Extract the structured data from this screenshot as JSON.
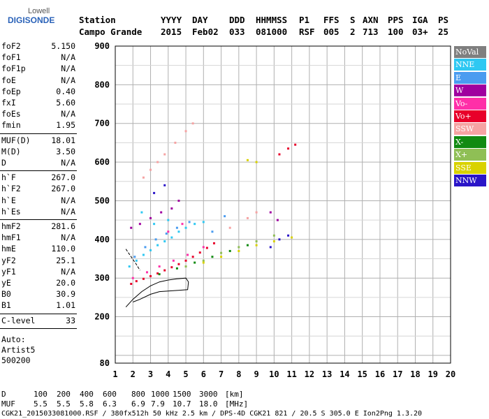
{
  "logo": {
    "line1": "Lowell",
    "line2": "DIGISONDE"
  },
  "header": {
    "station_label": "Station",
    "station_name": "Campo Grande",
    "field_labels": [
      "YYYY",
      "DAY",
      "DDD",
      "HHMMSS",
      "P1",
      "FFS",
      "S",
      "AXN",
      "PPS",
      "IGA",
      "PS"
    ],
    "field_values": [
      "2015",
      "Feb02",
      "033",
      "081000",
      "RSF",
      "005",
      "2",
      "713",
      "100",
      "03+",
      "25"
    ]
  },
  "params": {
    "group1": [
      {
        "k": "foF2",
        "v": "5.150"
      },
      {
        "k": "foF1",
        "v": "N/A"
      },
      {
        "k": "foF1p",
        "v": "N/A"
      },
      {
        "k": "foE",
        "v": "N/A"
      },
      {
        "k": "foEp",
        "v": "0.40"
      },
      {
        "k": "fxI",
        "v": "5.60"
      },
      {
        "k": "foEs",
        "v": "N/A"
      },
      {
        "k": "fmin",
        "v": "1.95"
      }
    ],
    "group2": [
      {
        "k": "MUF(D)",
        "v": "18.01"
      },
      {
        "k": "M(D)",
        "v": "3.50"
      },
      {
        "k": "D",
        "v": "N/A"
      }
    ],
    "group3": [
      {
        "k": "h`F",
        "v": "267.0"
      },
      {
        "k": "h`F2",
        "v": "267.0"
      },
      {
        "k": "h`E",
        "v": "N/A"
      },
      {
        "k": "h`Es",
        "v": "N/A"
      }
    ],
    "group4": [
      {
        "k": "hmF2",
        "v": "281.6"
      },
      {
        "k": "hmF1",
        "v": "N/A"
      },
      {
        "k": "hmE",
        "v": "110.0"
      },
      {
        "k": "yF2",
        "v": "25.1"
      },
      {
        "k": "yF1",
        "v": "N/A"
      },
      {
        "k": "yE",
        "v": "20.0"
      },
      {
        "k": "B0",
        "v": "30.9"
      },
      {
        "k": "B1",
        "v": "1.01"
      }
    ],
    "group5": [
      {
        "k": "C-level",
        "v": "33"
      }
    ],
    "auto": [
      "Auto:",
      "Artist5",
      "500200"
    ]
  },
  "legend": [
    {
      "label": "NoVal",
      "color": "#7f7f7f"
    },
    {
      "label": "NNE",
      "color": "#2ec8f2"
    },
    {
      "label": "E",
      "color": "#4a9cf0"
    },
    {
      "label": "W",
      "color": "#a0009f"
    },
    {
      "label": "Vo-",
      "color": "#ff2fa8"
    },
    {
      "label": "Vo+",
      "color": "#e8002a"
    },
    {
      "label": "SSW",
      "color": "#f6a3a3"
    },
    {
      "label": "X-",
      "color": "#118a11"
    },
    {
      "label": "X+",
      "color": "#8fbf55"
    },
    {
      "label": "SSE",
      "color": "#d9d200"
    },
    {
      "label": "NNW",
      "color": "#2a15c8"
    }
  ],
  "footer": {
    "d_label": "D",
    "d_values": [
      "100",
      "200",
      "400",
      "600",
      "800",
      "1000",
      "1500",
      "3000"
    ],
    "d_unit": "[km]",
    "muf_label": "MUF",
    "muf_values": [
      "5.5",
      "5.5",
      "5.8",
      "6.3",
      "6.9",
      "7.9",
      "10.7",
      "18.0"
    ],
    "muf_unit": "[MHz]",
    "file_line": "CGK21_2015033081000.RSF / 380fx512h 50 kHz 2.5 km / DPS-4D CGK21 821 / 20.5 S 305.0 E Ion2Png 1.3.20"
  },
  "chart_data": {
    "type": "scatter",
    "xlim": [
      1,
      20
    ],
    "ylim": [
      80,
      900
    ],
    "x_ticks": [
      1,
      2,
      3,
      4,
      5,
      6,
      7,
      8,
      9,
      10,
      11,
      12,
      13,
      14,
      15,
      16,
      17,
      18,
      19,
      20
    ],
    "y_ticks": [
      80,
      200,
      300,
      400,
      500,
      600,
      700,
      800,
      900
    ],
    "grid": true,
    "legend_position": "right",
    "clusters": [
      {
        "name": "Vo+",
        "points": [
          [
            1.9,
            285
          ],
          [
            2.2,
            292
          ],
          [
            2.6,
            298
          ],
          [
            3.0,
            305
          ],
          [
            3.4,
            312
          ],
          [
            3.8,
            320
          ],
          [
            4.2,
            328
          ],
          [
            4.6,
            336
          ],
          [
            5.0,
            345
          ],
          [
            5.4,
            355
          ],
          [
            5.8,
            366
          ],
          [
            6.2,
            378
          ],
          [
            6.6,
            390
          ],
          [
            10.3,
            620
          ],
          [
            10.8,
            635
          ],
          [
            11.2,
            645
          ]
        ]
      },
      {
        "name": "NNE",
        "points": [
          [
            1.8,
            330
          ],
          [
            2.2,
            345
          ],
          [
            2.6,
            360
          ],
          [
            3.0,
            372
          ],
          [
            3.4,
            385
          ],
          [
            3.8,
            395
          ],
          [
            4.2,
            405
          ],
          [
            4.6,
            420
          ],
          [
            5.0,
            430
          ],
          [
            5.5,
            440
          ],
          [
            6.0,
            445
          ],
          [
            2.5,
            470
          ],
          [
            3.2,
            440
          ],
          [
            4.0,
            450
          ]
        ]
      },
      {
        "name": "E",
        "points": [
          [
            2.1,
            355
          ],
          [
            2.7,
            380
          ],
          [
            3.3,
            400
          ],
          [
            3.9,
            415
          ],
          [
            4.5,
            430
          ],
          [
            5.2,
            445
          ],
          [
            6.5,
            420
          ],
          [
            7.2,
            460
          ]
        ]
      },
      {
        "name": "W",
        "points": [
          [
            1.9,
            430
          ],
          [
            2.4,
            440
          ],
          [
            3.0,
            455
          ],
          [
            3.6,
            470
          ],
          [
            4.2,
            480
          ],
          [
            4.6,
            500
          ],
          [
            9.8,
            470
          ],
          [
            10.2,
            450
          ]
        ]
      },
      {
        "name": "Vo-",
        "points": [
          [
            2.0,
            300
          ],
          [
            2.8,
            315
          ],
          [
            3.5,
            330
          ],
          [
            4.3,
            345
          ],
          [
            5.1,
            360
          ],
          [
            6.0,
            380
          ],
          [
            4.0,
            420
          ],
          [
            4.8,
            440
          ]
        ]
      },
      {
        "name": "SSW",
        "points": [
          [
            2.6,
            560
          ],
          [
            3.0,
            580
          ],
          [
            3.4,
            600
          ],
          [
            3.8,
            620
          ],
          [
            4.4,
            650
          ],
          [
            5.0,
            680
          ],
          [
            5.4,
            700
          ],
          [
            7.5,
            430
          ],
          [
            8.5,
            455
          ],
          [
            9.0,
            470
          ]
        ]
      },
      {
        "name": "X-",
        "points": [
          [
            3.5,
            310
          ],
          [
            4.5,
            325
          ],
          [
            5.5,
            340
          ],
          [
            6.5,
            355
          ],
          [
            7.5,
            370
          ],
          [
            8.5,
            385
          ]
        ]
      },
      {
        "name": "X+",
        "points": [
          [
            5.0,
            330
          ],
          [
            6.0,
            345
          ],
          [
            7.0,
            365
          ],
          [
            8.0,
            380
          ],
          [
            9.0,
            395
          ],
          [
            10.0,
            410
          ]
        ]
      },
      {
        "name": "SSE",
        "points": [
          [
            6.0,
            340
          ],
          [
            7.0,
            355
          ],
          [
            8.0,
            370
          ],
          [
            9.0,
            385
          ],
          [
            10.0,
            395
          ],
          [
            11.0,
            405
          ],
          [
            9.0,
            600
          ],
          [
            8.5,
            605
          ]
        ]
      },
      {
        "name": "NNW",
        "points": [
          [
            9.8,
            380
          ],
          [
            10.3,
            400
          ],
          [
            10.8,
            410
          ],
          [
            3.2,
            520
          ],
          [
            3.8,
            540
          ]
        ]
      }
    ],
    "profile_curve": [
      [
        1.6,
        225
      ],
      [
        2.0,
        245
      ],
      [
        2.5,
        265
      ],
      [
        3.0,
        280
      ],
      [
        3.5,
        290
      ],
      [
        4.0,
        295
      ],
      [
        4.5,
        298
      ],
      [
        5.0,
        300
      ],
      [
        5.15,
        290
      ],
      [
        5.1,
        270
      ],
      [
        4.5,
        268
      ],
      [
        3.5,
        265
      ],
      [
        3.0,
        258
      ],
      [
        2.4,
        245
      ],
      [
        2.0,
        238
      ]
    ],
    "profile_curve2": [
      [
        1.6,
        375
      ],
      [
        1.9,
        355
      ],
      [
        2.2,
        335
      ],
      [
        2.4,
        320
      ]
    ]
  }
}
